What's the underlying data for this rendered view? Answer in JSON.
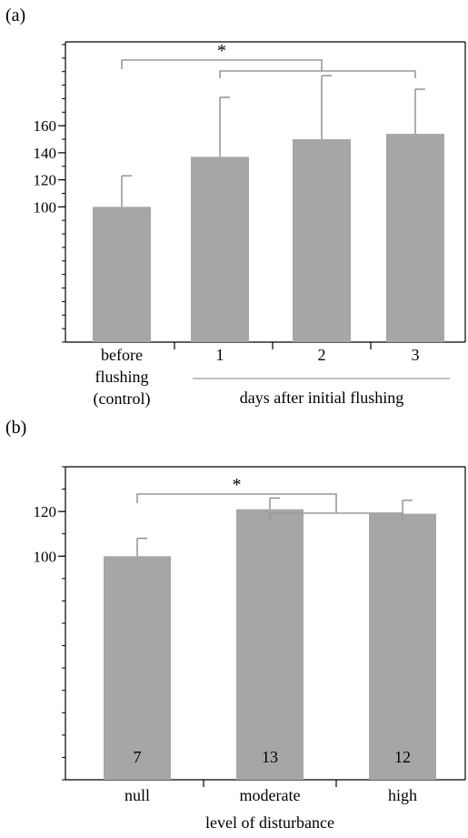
{
  "panels": [
    {
      "label": "(a)",
      "chart": {
        "type": "bar",
        "categories": [
          "before flushing (control)",
          "1",
          "2",
          "3"
        ],
        "category_tick_labels": [
          [
            "before",
            "flushing",
            "(control)"
          ],
          [
            "1"
          ],
          [
            "2"
          ],
          [
            "3"
          ]
        ],
        "group_label": "days after initial flushing",
        "values": [
          100,
          137,
          150,
          154
        ],
        "error_upper": [
          123,
          181,
          197,
          187
        ],
        "yticks": [
          100,
          120,
          140,
          160
        ],
        "ylim": [
          0,
          222
        ],
        "minor_tick_step": 10,
        "significance": "*",
        "bar_labels": [],
        "xlabel": "",
        "ylabel": "",
        "bar_color": "#a6a6a6",
        "bracket_color": "#999999"
      }
    },
    {
      "label": "(b)",
      "chart": {
        "type": "bar",
        "categories": [
          "null",
          "moderate",
          "high"
        ],
        "category_tick_labels": [
          [
            "null"
          ],
          [
            "moderate"
          ],
          [
            "high"
          ]
        ],
        "group_label": "",
        "values": [
          100,
          121,
          119
        ],
        "error_upper": [
          108,
          126,
          125
        ],
        "yticks": [
          100,
          120
        ],
        "ylim": [
          0,
          140
        ],
        "minor_tick_step": 10,
        "significance": "*",
        "bar_labels": [
          "7",
          "13",
          "12"
        ],
        "xlabel": "level of disturbance",
        "ylabel": "",
        "bar_color": "#a6a6a6",
        "bracket_color": "#999999"
      }
    }
  ]
}
